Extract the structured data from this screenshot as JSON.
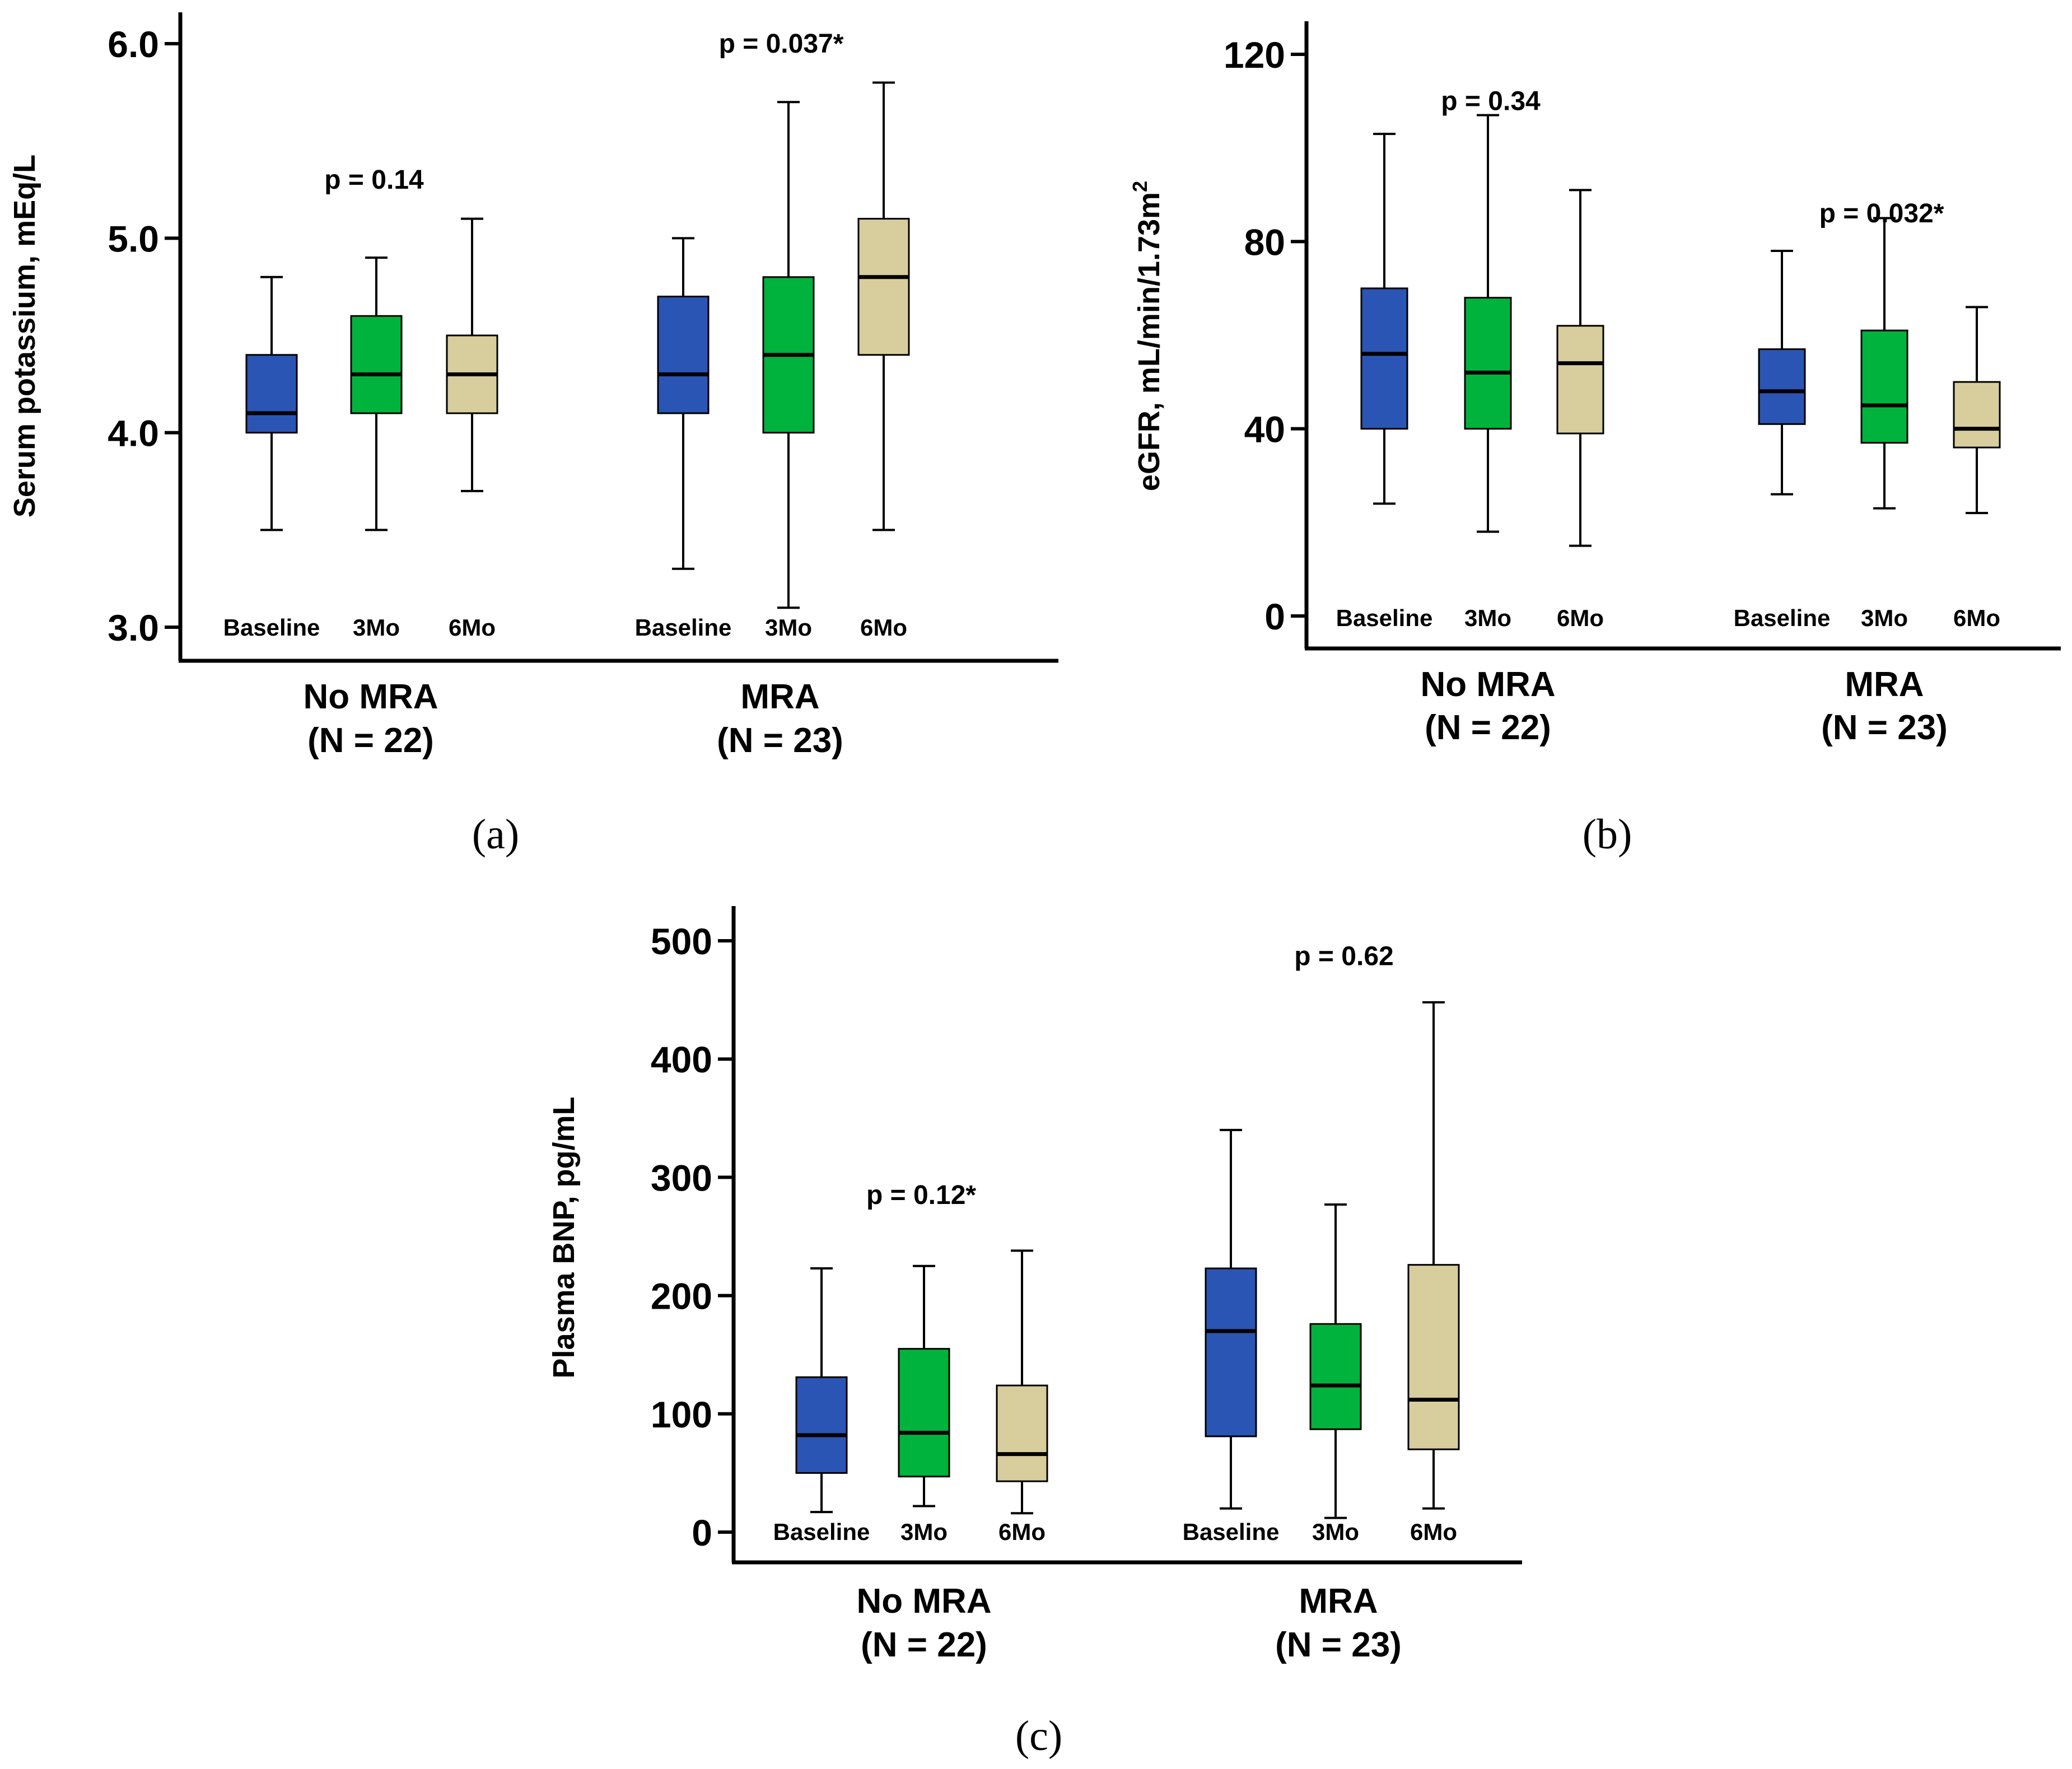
{
  "colors": {
    "baseline": "#2a55b4",
    "month3": "#00b33c",
    "month6": "#d8cd9c",
    "line": "#000000"
  },
  "chart_data": [
    {
      "type": "box",
      "panel_label": "(a)",
      "ylabel": "Serum potassium, mEq/L",
      "ylim": [
        3.0,
        6.0
      ],
      "yticks": [
        "3.0",
        "4.0",
        "5.0",
        "6.0"
      ],
      "tick_values": [
        3.0,
        4.0,
        5.0,
        6.0
      ],
      "timepoints": [
        "Baseline",
        "3Mo",
        "6Mo"
      ],
      "groups": [
        {
          "name": "No MRA",
          "n_label": "(N = 22)",
          "p_label": "p = 0.14",
          "p_value_position": 5.3,
          "boxes": [
            {
              "timepoint": "Baseline",
              "min": 3.5,
              "q1": 4.0,
              "median": 4.1,
              "q3": 4.4,
              "max": 4.8
            },
            {
              "timepoint": "3Mo",
              "min": 3.5,
              "q1": 4.1,
              "median": 4.3,
              "q3": 4.6,
              "max": 4.9
            },
            {
              "timepoint": "6Mo",
              "min": 3.7,
              "q1": 4.1,
              "median": 4.3,
              "q3": 4.5,
              "max": 5.1
            }
          ]
        },
        {
          "name": "MRA",
          "n_label": "(N = 23)",
          "p_label": "p = 0.037*",
          "p_value_position": 6.0,
          "boxes": [
            {
              "timepoint": "Baseline",
              "min": 3.3,
              "q1": 4.1,
              "median": 4.3,
              "q3": 4.7,
              "max": 5.0
            },
            {
              "timepoint": "3Mo",
              "min": 3.1,
              "q1": 4.0,
              "median": 4.4,
              "q3": 4.8,
              "max": 5.7
            },
            {
              "timepoint": "6Mo",
              "min": 3.5,
              "q1": 4.4,
              "median": 4.8,
              "q3": 5.1,
              "max": 5.8
            }
          ]
        }
      ]
    },
    {
      "type": "box",
      "panel_label": "(b)",
      "ylabel": "eGFR, mL/min/1.73m",
      "ylabel_superscript": "2",
      "ylim": [
        0,
        120
      ],
      "yticks": [
        "0",
        "40",
        "80",
        "120"
      ],
      "tick_values": [
        0,
        40,
        80,
        120
      ],
      "timepoints": [
        "Baseline",
        "3Mo",
        "6Mo"
      ],
      "groups": [
        {
          "name": "No MRA",
          "n_label": "(N = 22)",
          "p_label": "p = 0.34",
          "p_value_position": 110,
          "boxes": [
            {
              "timepoint": "Baseline",
              "min": 24,
              "q1": 40,
              "median": 56,
              "q3": 70,
              "max": 103
            },
            {
              "timepoint": "3Mo",
              "min": 18,
              "q1": 40,
              "median": 52,
              "q3": 68,
              "max": 107
            },
            {
              "timepoint": "6Mo",
              "min": 15,
              "q1": 39,
              "median": 54,
              "q3": 62,
              "max": 91
            }
          ]
        },
        {
          "name": "MRA",
          "n_label": "(N = 23)",
          "p_label": "p = 0.032*",
          "p_value_position": 86,
          "boxes": [
            {
              "timepoint": "Baseline",
              "min": 26,
              "q1": 41,
              "median": 48,
              "q3": 57,
              "max": 78
            },
            {
              "timepoint": "3Mo",
              "min": 23,
              "q1": 37,
              "median": 45,
              "q3": 61,
              "max": 85
            },
            {
              "timepoint": "6Mo",
              "min": 22,
              "q1": 36,
              "median": 40,
              "q3": 50,
              "max": 66
            }
          ]
        }
      ]
    },
    {
      "type": "box",
      "panel_label": "(c)",
      "ylabel": "Plasma BNP, pg/mL",
      "ylim": [
        0,
        500
      ],
      "yticks": [
        "0",
        "100",
        "200",
        "300",
        "400",
        "500"
      ],
      "tick_values": [
        0,
        100,
        200,
        300,
        400,
        500
      ],
      "timepoints": [
        "Baseline",
        "3Mo",
        "6Mo"
      ],
      "groups": [
        {
          "name": "No MRA",
          "n_label": "(N = 22)",
          "p_label": "p = 0.12*",
          "p_value_position": 285,
          "boxes": [
            {
              "timepoint": "Baseline",
              "min": 17,
              "q1": 50,
              "median": 82,
              "q3": 131,
              "max": 223
            },
            {
              "timepoint": "3Mo",
              "min": 22,
              "q1": 47,
              "median": 84,
              "q3": 155,
              "max": 225
            },
            {
              "timepoint": "6Mo",
              "min": 16,
              "q1": 43,
              "median": 66,
              "q3": 124,
              "max": 238
            }
          ]
        },
        {
          "name": "MRA",
          "n_label": "(N = 23)",
          "p_label": "p = 0.62",
          "p_value_position": 487,
          "boxes": [
            {
              "timepoint": "Baseline",
              "min": 20,
              "q1": 81,
              "median": 170,
              "q3": 223,
              "max": 340
            },
            {
              "timepoint": "3Mo",
              "min": 12,
              "q1": 87,
              "median": 124,
              "q3": 176,
              "max": 277
            },
            {
              "timepoint": "6Mo",
              "min": 20,
              "q1": 70,
              "median": 112,
              "q3": 226,
              "max": 448
            }
          ]
        }
      ]
    }
  ]
}
